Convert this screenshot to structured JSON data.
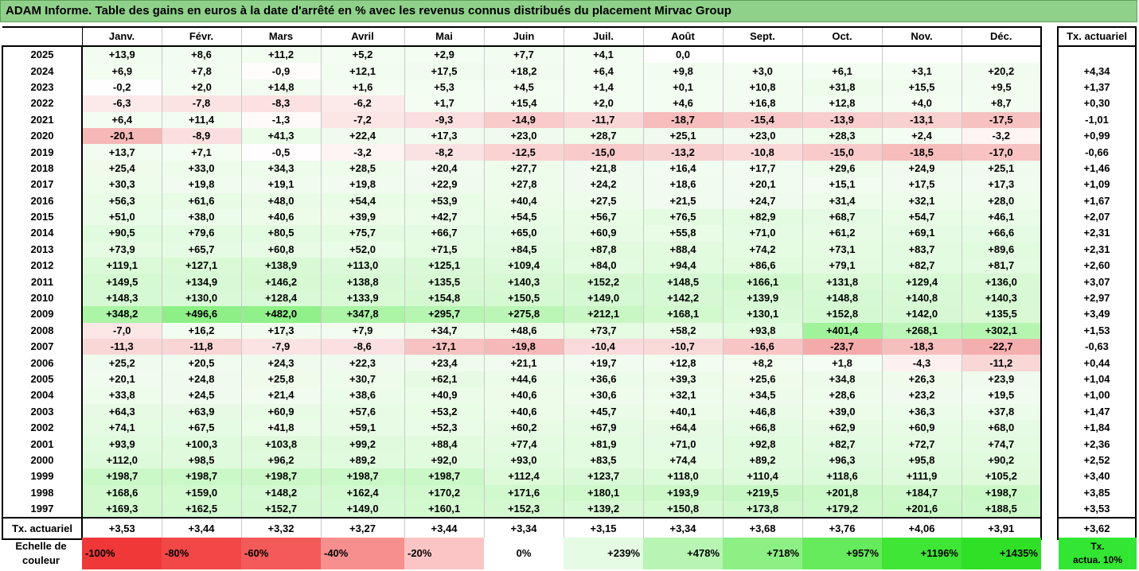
{
  "title": "ADAM Informe. Table des gains en euros à la date d'arrêté en % avec les revenus connus distribués du placement Mirvac Group",
  "chart_data": {
    "type": "heatmap",
    "title": "ADAM Informe. Table des gains en euros à la date d'arrêté en % avec les revenus connus distribués du placement Mirvac Group",
    "columns": [
      "Janv.",
      "Févr.",
      "Mars",
      "Avril",
      "Mai",
      "Juin",
      "Juil.",
      "Août",
      "Sept.",
      "Oct.",
      "Nov.",
      "Déc."
    ],
    "summary_column_label": "Tx. actuariel",
    "footer_row_label": "Tx. actuariel",
    "rows": [
      {
        "year": "2025",
        "values": [
          "+13,9",
          "+8,6",
          "+11,2",
          "+5,2",
          "+2,9",
          "+7,7",
          "+4,1",
          "0,0",
          "",
          "",
          "",
          ""
        ],
        "actu": ""
      },
      {
        "year": "2024",
        "values": [
          "+6,9",
          "+7,8",
          "-0,9",
          "+12,1",
          "+17,5",
          "+18,2",
          "+6,4",
          "+9,8",
          "+3,0",
          "+6,1",
          "+3,1",
          "+20,2"
        ],
        "actu": "+4,34"
      },
      {
        "year": "2023",
        "values": [
          "-0,2",
          "+2,0",
          "+14,8",
          "+1,6",
          "+5,3",
          "+4,5",
          "+1,4",
          "+0,1",
          "+10,8",
          "+31,8",
          "+15,5",
          "+9,5"
        ],
        "actu": "+1,37"
      },
      {
        "year": "2022",
        "values": [
          "-6,3",
          "-7,8",
          "-8,3",
          "-6,2",
          "+1,7",
          "+15,4",
          "+2,0",
          "+4,6",
          "+16,8",
          "+12,8",
          "+4,0",
          "+8,7"
        ],
        "actu": "+0,30"
      },
      {
        "year": "2021",
        "values": [
          "+6,4",
          "+11,4",
          "-1,3",
          "-7,2",
          "-9,3",
          "-14,9",
          "-11,7",
          "-18,7",
          "-15,4",
          "-13,9",
          "-13,1",
          "-17,5"
        ],
        "actu": "-1,01"
      },
      {
        "year": "2020",
        "values": [
          "-20,1",
          "-8,9",
          "+41,3",
          "+22,4",
          "+17,3",
          "+23,0",
          "+28,7",
          "+25,1",
          "+23,0",
          "+28,3",
          "+2,4",
          "-3,2"
        ],
        "actu": "+0,99"
      },
      {
        "year": "2019",
        "values": [
          "+13,7",
          "+7,1",
          "-0,5",
          "-3,2",
          "-8,2",
          "-12,5",
          "-15,0",
          "-13,2",
          "-10,8",
          "-15,0",
          "-18,5",
          "-17,0"
        ],
        "actu": "-0,66"
      },
      {
        "year": "2018",
        "values": [
          "+25,4",
          "+33,0",
          "+34,3",
          "+28,5",
          "+20,4",
          "+27,7",
          "+21,8",
          "+16,4",
          "+17,7",
          "+29,6",
          "+24,9",
          "+25,1"
        ],
        "actu": "+1,46"
      },
      {
        "year": "2017",
        "values": [
          "+30,3",
          "+19,8",
          "+19,1",
          "+19,8",
          "+22,9",
          "+27,8",
          "+24,2",
          "+18,6",
          "+20,1",
          "+15,1",
          "+17,5",
          "+17,3"
        ],
        "actu": "+1,09"
      },
      {
        "year": "2016",
        "values": [
          "+56,3",
          "+61,6",
          "+48,0",
          "+54,4",
          "+53,9",
          "+40,4",
          "+27,5",
          "+21,5",
          "+24,7",
          "+31,4",
          "+32,1",
          "+28,0"
        ],
        "actu": "+1,67"
      },
      {
        "year": "2015",
        "values": [
          "+51,0",
          "+38,0",
          "+40,6",
          "+39,9",
          "+42,7",
          "+54,5",
          "+56,7",
          "+76,5",
          "+82,9",
          "+68,7",
          "+54,7",
          "+46,1"
        ],
        "actu": "+2,07"
      },
      {
        "year": "2014",
        "values": [
          "+90,5",
          "+79,6",
          "+80,5",
          "+75,7",
          "+66,7",
          "+65,0",
          "+60,9",
          "+55,8",
          "+71,0",
          "+61,2",
          "+69,1",
          "+66,6"
        ],
        "actu": "+2,31"
      },
      {
        "year": "2013",
        "values": [
          "+73,9",
          "+65,7",
          "+60,8",
          "+52,0",
          "+71,5",
          "+84,5",
          "+87,8",
          "+88,4",
          "+74,2",
          "+73,1",
          "+83,7",
          "+89,6"
        ],
        "actu": "+2,31"
      },
      {
        "year": "2012",
        "values": [
          "+119,1",
          "+127,1",
          "+138,9",
          "+113,0",
          "+125,1",
          "+109,4",
          "+84,0",
          "+94,4",
          "+86,6",
          "+79,1",
          "+82,7",
          "+81,7"
        ],
        "actu": "+2,60"
      },
      {
        "year": "2011",
        "values": [
          "+149,5",
          "+134,9",
          "+146,2",
          "+138,8",
          "+135,5",
          "+140,3",
          "+152,2",
          "+148,5",
          "+166,1",
          "+131,8",
          "+129,4",
          "+136,0"
        ],
        "actu": "+3,07"
      },
      {
        "year": "2010",
        "values": [
          "+148,3",
          "+130,0",
          "+128,4",
          "+133,9",
          "+154,8",
          "+150,5",
          "+149,0",
          "+142,2",
          "+139,9",
          "+148,8",
          "+140,8",
          "+140,3"
        ],
        "actu": "+2,97"
      },
      {
        "year": "2009",
        "values": [
          "+348,2",
          "+496,6",
          "+482,0",
          "+347,8",
          "+295,7",
          "+275,8",
          "+212,1",
          "+168,1",
          "+130,1",
          "+152,8",
          "+142,0",
          "+135,5"
        ],
        "actu": "+3,49"
      },
      {
        "year": "2008",
        "values": [
          "-7,0",
          "+16,2",
          "+17,3",
          "+7,9",
          "+34,7",
          "+48,6",
          "+73,7",
          "+58,2",
          "+93,8",
          "+401,4",
          "+268,1",
          "+302,1"
        ],
        "actu": "+1,53"
      },
      {
        "year": "2007",
        "values": [
          "-11,3",
          "-11,8",
          "-7,9",
          "-8,6",
          "-17,1",
          "-19,8",
          "-10,4",
          "-10,7",
          "-16,6",
          "-23,7",
          "-18,3",
          "-22,7"
        ],
        "actu": "-0,63"
      },
      {
        "year": "2006",
        "values": [
          "+25,2",
          "+20,5",
          "+24,3",
          "+22,3",
          "+23,4",
          "+21,1",
          "+19,7",
          "+12,8",
          "+8,2",
          "+1,8",
          "-4,3",
          "-11,2"
        ],
        "actu": "+0,44"
      },
      {
        "year": "2005",
        "values": [
          "+20,1",
          "+24,8",
          "+25,8",
          "+30,7",
          "+62,1",
          "+44,6",
          "+36,6",
          "+39,3",
          "+25,6",
          "+34,8",
          "+26,3",
          "+23,9"
        ],
        "actu": "+1,04"
      },
      {
        "year": "2004",
        "values": [
          "+33,8",
          "+24,5",
          "+21,4",
          "+38,6",
          "+40,9",
          "+40,6",
          "+30,6",
          "+32,1",
          "+34,5",
          "+28,6",
          "+23,2",
          "+19,5"
        ],
        "actu": "+1,00"
      },
      {
        "year": "2003",
        "values": [
          "+64,3",
          "+63,9",
          "+60,9",
          "+57,6",
          "+53,2",
          "+40,6",
          "+45,7",
          "+40,1",
          "+46,8",
          "+39,0",
          "+36,3",
          "+37,8"
        ],
        "actu": "+1,47"
      },
      {
        "year": "2002",
        "values": [
          "+74,1",
          "+67,5",
          "+41,8",
          "+59,1",
          "+52,3",
          "+60,2",
          "+67,9",
          "+64,4",
          "+66,8",
          "+62,9",
          "+60,9",
          "+68,0"
        ],
        "actu": "+1,84"
      },
      {
        "year": "2001",
        "values": [
          "+93,9",
          "+100,3",
          "+103,8",
          "+99,2",
          "+88,4",
          "+77,4",
          "+81,9",
          "+71,0",
          "+92,8",
          "+82,7",
          "+72,7",
          "+74,7"
        ],
        "actu": "+2,36"
      },
      {
        "year": "2000",
        "values": [
          "+112,0",
          "+98,5",
          "+96,2",
          "+89,2",
          "+92,0",
          "+93,0",
          "+83,5",
          "+74,4",
          "+89,2",
          "+96,3",
          "+95,8",
          "+90,2"
        ],
        "actu": "+2,52"
      },
      {
        "year": "1999",
        "values": [
          "+198,7",
          "+198,7",
          "+198,7",
          "+198,7",
          "+198,7",
          "+112,4",
          "+123,7",
          "+118,0",
          "+110,4",
          "+118,6",
          "+111,9",
          "+105,2"
        ],
        "actu": "+3,40"
      },
      {
        "year": "1998",
        "values": [
          "+168,6",
          "+159,0",
          "+148,2",
          "+162,4",
          "+170,2",
          "+171,6",
          "+180,1",
          "+193,9",
          "+219,5",
          "+201,8",
          "+184,7",
          "+198,7"
        ],
        "actu": "+3,85"
      },
      {
        "year": "1997",
        "values": [
          "+169,3",
          "+162,5",
          "+152,7",
          "+149,0",
          "+160,1",
          "+152,3",
          "+139,2",
          "+150,8",
          "+173,8",
          "+179,2",
          "+201,6",
          "+188,5"
        ],
        "actu": "+3,53"
      }
    ],
    "footer_values": [
      "+3,53",
      "+3,44",
      "+3,32",
      "+3,27",
      "+3,44",
      "+3,34",
      "+3,15",
      "+3,34",
      "+3,68",
      "+3,76",
      "+4,06",
      "+3,91"
    ],
    "footer_actu": "+3,62",
    "color_scale": {
      "label": "Echelle de couleur",
      "steps": [
        {
          "label": "-100%",
          "color": "#f03838",
          "pct": -100
        },
        {
          "label": "-80%",
          "color": "#f24747",
          "pct": -80
        },
        {
          "label": "-60%",
          "color": "#f55a5a",
          "pct": -60
        },
        {
          "label": "-40%",
          "color": "#f88f8f",
          "pct": -40
        },
        {
          "label": "-20%",
          "color": "#fbc5c5",
          "pct": -20
        },
        {
          "label": "0%",
          "color": "#ffffff",
          "pct": 0
        },
        {
          "label": "+239%",
          "color": "#e5fbe3",
          "pct": 239
        },
        {
          "label": "+478%",
          "color": "#b8f5b3",
          "pct": 478
        },
        {
          "label": "+718%",
          "color": "#8cf085",
          "pct": 718
        },
        {
          "label": "+957%",
          "color": "#66eb5c",
          "pct": 957
        },
        {
          "label": "+1196%",
          "color": "#3fe636",
          "pct": 1196
        },
        {
          "label": "+1435%",
          "color": "#2fe026",
          "pct": 1435
        }
      ],
      "actu_label": "Tx. actua. 10%",
      "actu_color": "#33e633"
    }
  }
}
